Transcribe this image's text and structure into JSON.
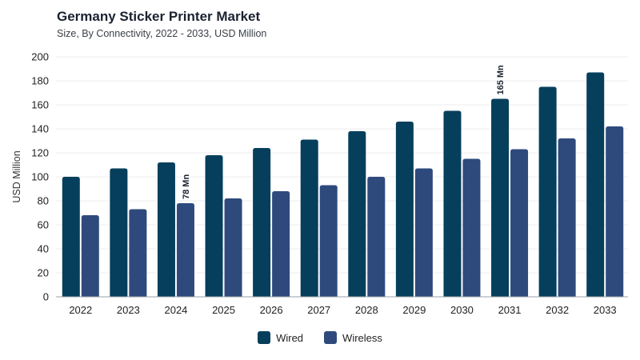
{
  "chart_data": {
    "type": "bar",
    "title": "Germany Sticker Printer Market",
    "subtitle": "Size, By Connectivity, 2022 - 2033, USD Million",
    "xlabel": "",
    "ylabel": "USD Million",
    "ylim": [
      0,
      200
    ],
    "yticks": [
      0,
      20,
      40,
      60,
      80,
      100,
      120,
      140,
      160,
      180,
      200
    ],
    "categories": [
      "2022",
      "2023",
      "2024",
      "2025",
      "2026",
      "2027",
      "2028",
      "2029",
      "2030",
      "2031",
      "2032",
      "2033"
    ],
    "series": [
      {
        "name": "Wired",
        "color": "#053f5c",
        "values": [
          100,
          107,
          112,
          118,
          124,
          131,
          138,
          146,
          155,
          165,
          175,
          187
        ]
      },
      {
        "name": "Wireless",
        "color": "#2e4a7d",
        "values": [
          68,
          73,
          78,
          82,
          88,
          93,
          100,
          107,
          115,
          123,
          132,
          142
        ]
      }
    ],
    "annotations": [
      {
        "series": "Wireless",
        "category": "2024",
        "text": "78 Mn"
      },
      {
        "series": "Wired",
        "category": "2031",
        "text": "165 Mn"
      }
    ],
    "grid": true,
    "legend": "bottom-center"
  }
}
